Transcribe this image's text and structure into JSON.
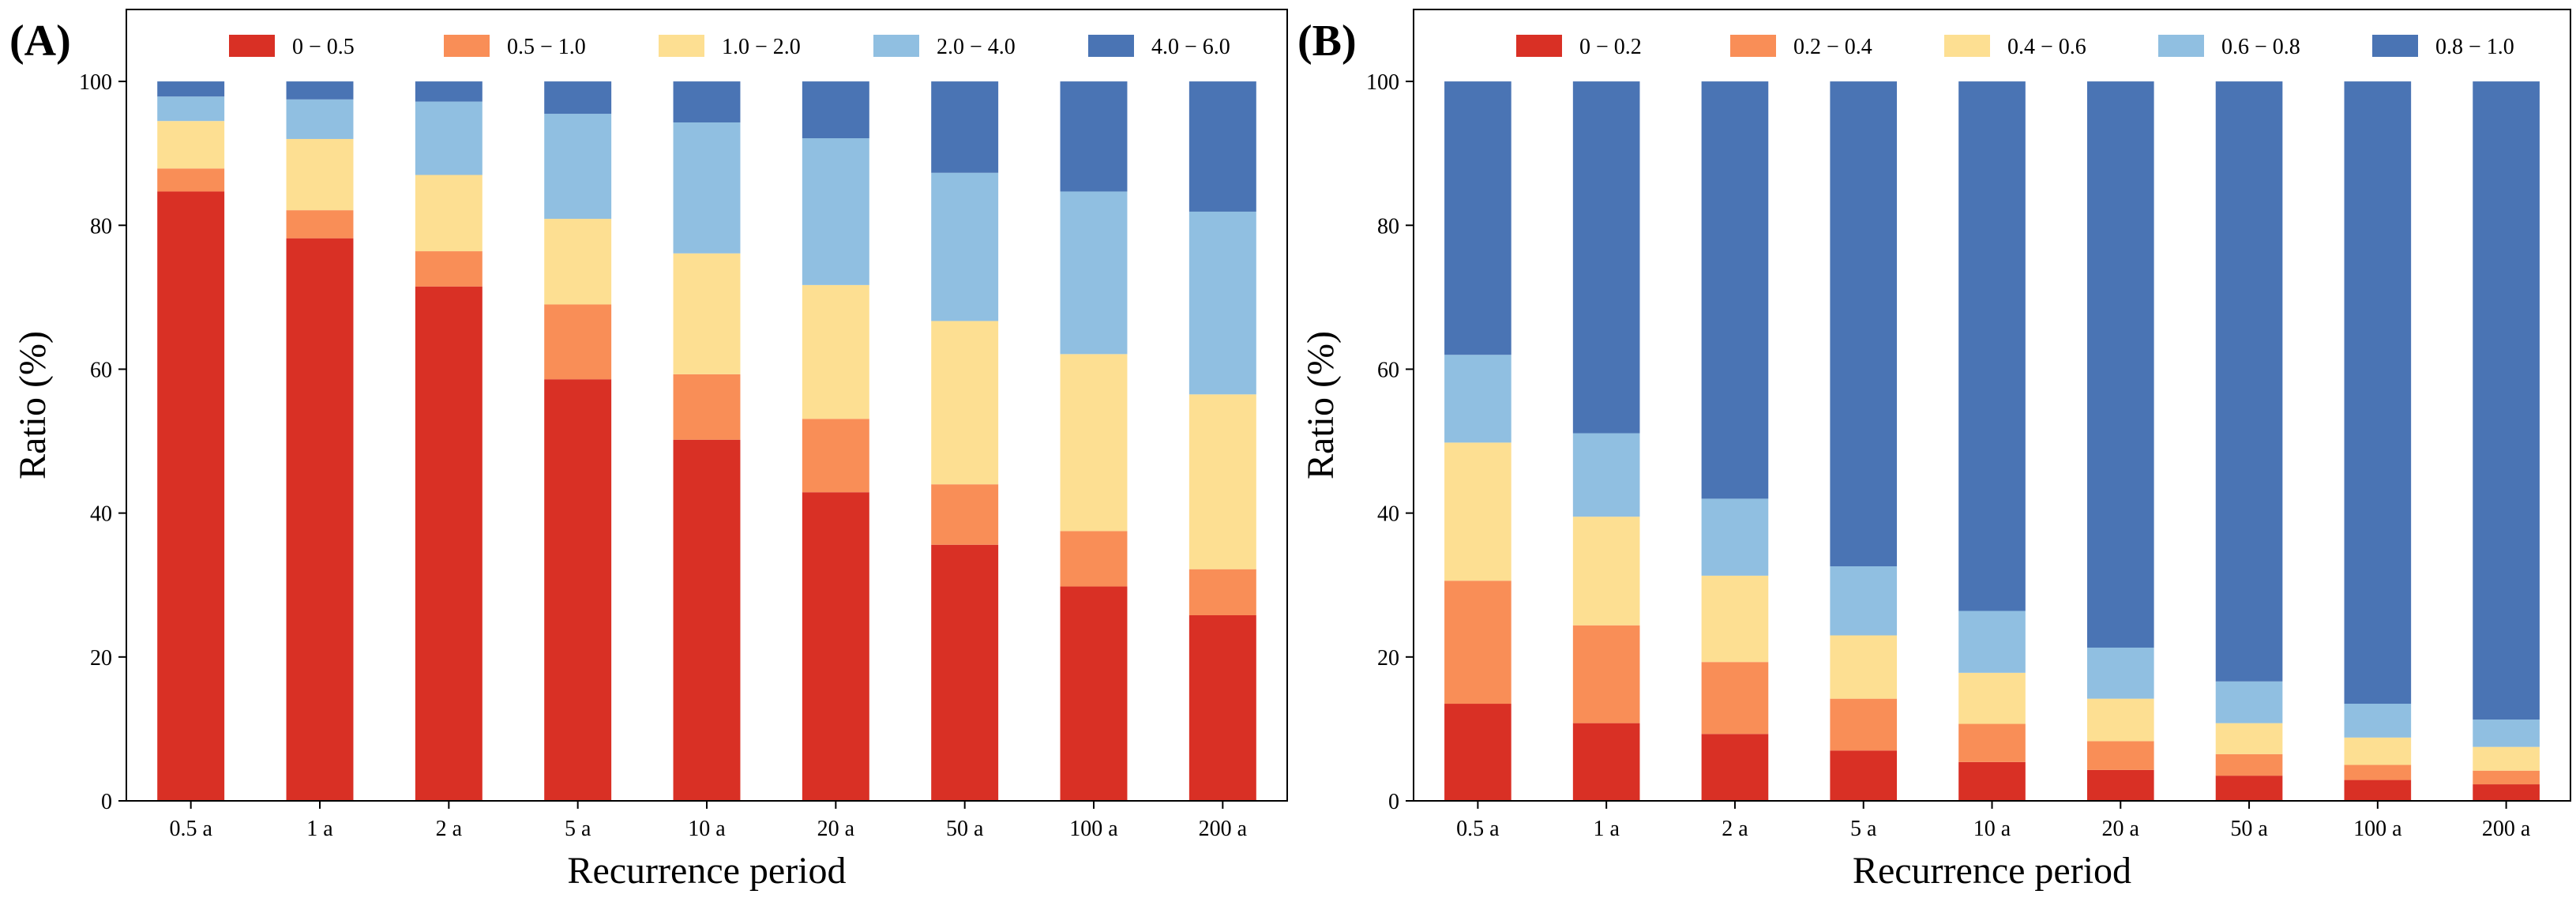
{
  "figure": {
    "panels": [
      {
        "label": "(A)"
      },
      {
        "label": "(B)"
      }
    ]
  },
  "chart_data": [
    {
      "type": "bar",
      "stacked": true,
      "panel_label": "(A)",
      "xlabel": "Recurrence period",
      "ylabel": "Ratio (%)",
      "ylim": [
        0,
        110
      ],
      "yticks": [
        0,
        20,
        40,
        60,
        80,
        100
      ],
      "grid": false,
      "legend_position": "top",
      "categories": [
        "0.5 a",
        "1 a",
        "2 a",
        "5 a",
        "10 a",
        "20 a",
        "50 a",
        "100 a",
        "200 a"
      ],
      "series": [
        {
          "name": "0 − 0.5",
          "color": "#d93025",
          "values": [
            84.7,
            78.2,
            71.5,
            58.6,
            50.2,
            42.9,
            35.6,
            29.8,
            25.8
          ]
        },
        {
          "name": "0.5 − 1.0",
          "color": "#f98e57",
          "values": [
            3.2,
            3.9,
            4.9,
            10.4,
            9.1,
            10.2,
            8.4,
            7.7,
            6.4
          ]
        },
        {
          "name": "1.0 − 2.0",
          "color": "#fddf92",
          "values": [
            6.6,
            9.9,
            10.6,
            11.9,
            16.8,
            18.6,
            22.7,
            24.6,
            24.3
          ]
        },
        {
          "name": "2.0 − 4.0",
          "color": "#90bfe1",
          "values": [
            3.4,
            5.5,
            10.2,
            14.6,
            18.2,
            20.4,
            20.6,
            22.6,
            25.4
          ]
        },
        {
          "name": "4.0 − 6.0",
          "color": "#4a74b4",
          "values": [
            2.1,
            2.5,
            2.8,
            4.5,
            5.7,
            7.9,
            12.7,
            15.3,
            18.1
          ]
        }
      ]
    },
    {
      "type": "bar",
      "stacked": true,
      "panel_label": "(B)",
      "xlabel": "Recurrence period",
      "ylabel": "Ratio (%)",
      "ylim": [
        0,
        110
      ],
      "yticks": [
        0,
        20,
        40,
        60,
        80,
        100
      ],
      "grid": false,
      "legend_position": "top",
      "categories": [
        "0.5 a",
        "1 a",
        "2 a",
        "5 a",
        "10 a",
        "20 a",
        "50 a",
        "100 a",
        "200 a"
      ],
      "series": [
        {
          "name": "0 − 0.2",
          "color": "#d93025",
          "values": [
            13.5,
            10.8,
            9.3,
            7.0,
            5.4,
            4.3,
            3.5,
            2.9,
            2.3
          ]
        },
        {
          "name": "0.2 − 0.4",
          "color": "#f98e57",
          "values": [
            17.1,
            13.6,
            10.0,
            7.2,
            5.3,
            4.0,
            3.0,
            2.1,
            1.9
          ]
        },
        {
          "name": "0.4 − 0.6",
          "color": "#fddf92",
          "values": [
            19.2,
            15.1,
            12.0,
            8.8,
            7.1,
            5.9,
            4.3,
            3.8,
            3.3
          ]
        },
        {
          "name": "0.6 − 0.8",
          "color": "#90bfe1",
          "values": [
            12.2,
            11.6,
            10.7,
            9.6,
            8.6,
            7.1,
            5.8,
            4.7,
            3.8
          ]
        },
        {
          "name": "0.8 − 1.0",
          "color": "#4a74b4",
          "values": [
            38.0,
            48.9,
            58.0,
            67.4,
            73.6,
            78.7,
            83.4,
            86.5,
            88.7
          ]
        }
      ]
    }
  ]
}
